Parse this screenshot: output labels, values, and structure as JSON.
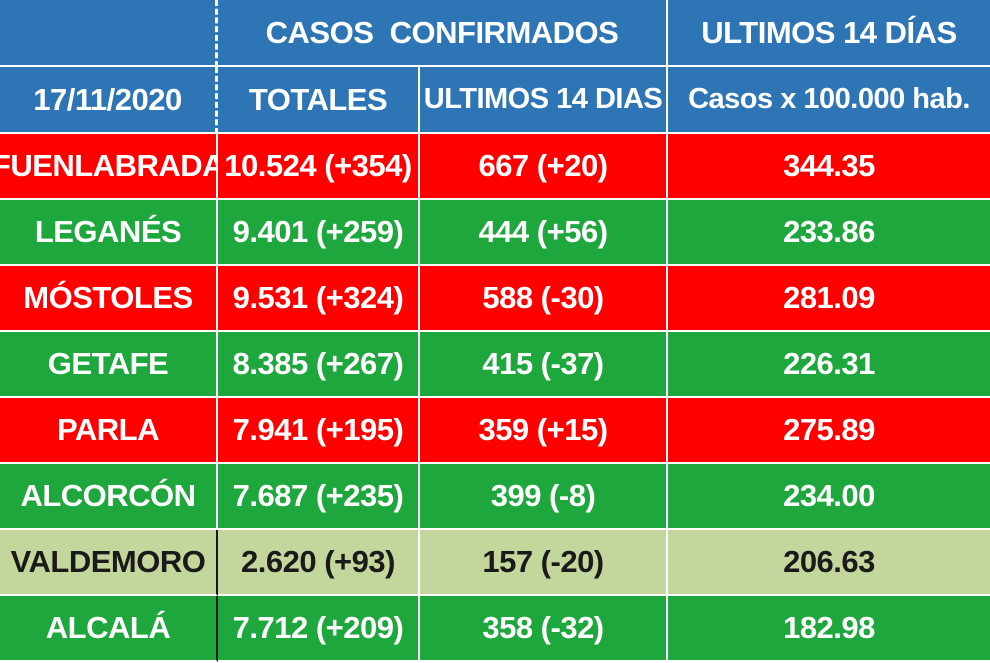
{
  "header": {
    "group_cases": "CASOS  CONFIRMADOS",
    "group_last14": "ULTIMOS 14 DÍAS",
    "date": "17/11/2020",
    "col_totals": "TOTALES",
    "col_last14": "ULTIMOS 14 DIAS",
    "col_rate": "Casos x 100.000 hab."
  },
  "colors": {
    "header_blue": "#2e75b6",
    "red": "#ff0000",
    "green": "#1ea73c",
    "tan": "#c3d69b"
  },
  "rows": [
    {
      "city": "FUENLABRADA",
      "totals": "10.524 (+354)",
      "last14": "667 (+20)",
      "rate": "344.35",
      "status": "red"
    },
    {
      "city": "LEGANÉS",
      "totals": "9.401 (+259)",
      "last14": "444 (+56)",
      "rate": "233.86",
      "status": "green"
    },
    {
      "city": "MÓSTOLES",
      "totals": "9.531 (+324)",
      "last14": "588 (-30)",
      "rate": "281.09",
      "status": "red"
    },
    {
      "city": "GETAFE",
      "totals": "8.385 (+267)",
      "last14": "415 (-37)",
      "rate": "226.31",
      "status": "green"
    },
    {
      "city": "PARLA",
      "totals": "7.941 (+195)",
      "last14": "359 (+15)",
      "rate": "275.89",
      "status": "red"
    },
    {
      "city": "ALCORCÓN",
      "totals": "7.687 (+235)",
      "last14": "399 (-8)",
      "rate": "234.00",
      "status": "green"
    },
    {
      "city": "VALDEMORO",
      "totals": "2.620 (+93)",
      "last14": "157 (-20)",
      "rate": "206.63",
      "status": "tan"
    },
    {
      "city": "ALCALÁ",
      "totals": "7.712 (+209)",
      "last14": "358 (-32)",
      "rate": "182.98",
      "status": "green"
    }
  ]
}
